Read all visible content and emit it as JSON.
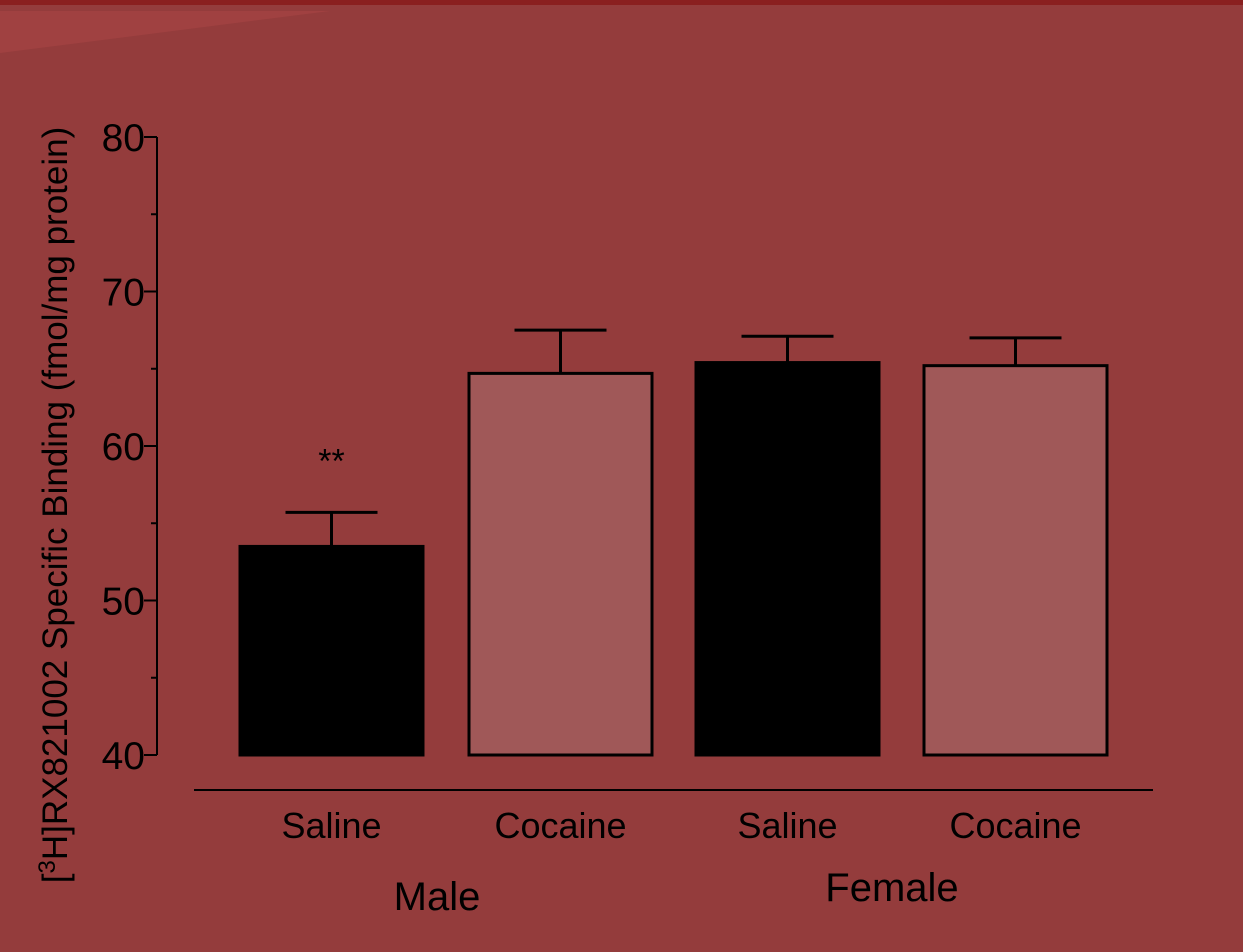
{
  "colors": {
    "background": "#943c3c",
    "saline_bar": "#000000",
    "cocaine_bar": "#a05858"
  },
  "chart_data": {
    "type": "bar",
    "categories": [
      "Saline",
      "Cocaine",
      "Saline",
      "Cocaine"
    ],
    "groups": [
      {
        "label": "Male",
        "categories": [
          0,
          1
        ]
      },
      {
        "label": "Female",
        "categories": [
          2,
          3
        ]
      }
    ],
    "values": [
      53.5,
      64.7,
      65.4,
      65.2
    ],
    "errors": [
      2.2,
      2.8,
      1.7,
      1.8
    ],
    "annotations": [
      {
        "category": 0,
        "text": "**"
      }
    ],
    "ylabel_prefix": "[",
    "ylabel_sup": "3",
    "ylabel_rest": "H]RX821002 Specific Binding (fmol/mg protein)",
    "ylim": [
      40,
      80
    ],
    "yticks": [
      40,
      50,
      60,
      70,
      80
    ],
    "grid": false,
    "legend": "none"
  }
}
